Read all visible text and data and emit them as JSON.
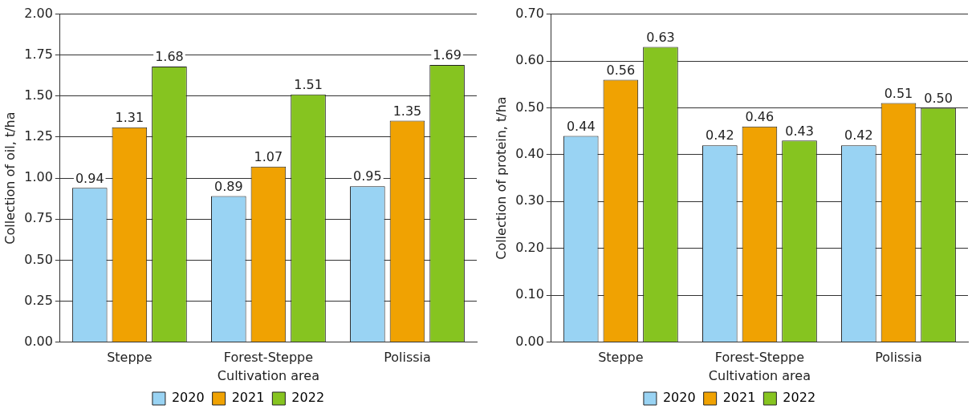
{
  "chart_data": [
    {
      "type": "bar",
      "xlabel": "Cultivation area",
      "ylabel": "Collection of oil, t/ha",
      "categories": [
        "Steppe",
        "Forest-Steppe",
        "Polissia"
      ],
      "series": [
        {
          "name": "2020",
          "color": "#99d3f3",
          "values": [
            0.94,
            0.89,
            0.95
          ],
          "value_labels": [
            "0.94",
            "0.89",
            "0.95"
          ]
        },
        {
          "name": "2021",
          "color": "#f0a202",
          "values": [
            1.31,
            1.07,
            1.35
          ],
          "value_labels": [
            "1.31",
            "1.07",
            "1.35"
          ]
        },
        {
          "name": "2022",
          "color": "#86c420",
          "values": [
            1.68,
            1.51,
            1.69
          ],
          "value_labels": [
            "1.68",
            "1.51",
            "1.69"
          ]
        }
      ],
      "ylim": [
        0,
        2
      ],
      "yticks": [
        {
          "value": 0,
          "label": "0.00"
        },
        {
          "value": 0.25,
          "label": "0.25"
        },
        {
          "value": 0.5,
          "label": "0.50"
        },
        {
          "value": 0.75,
          "label": "0.75"
        },
        {
          "value": 1,
          "label": "1.00"
        },
        {
          "value": 1.25,
          "label": "1.25"
        },
        {
          "value": 1.5,
          "label": "1.50"
        },
        {
          "value": 1.75,
          "label": "1.75"
        },
        {
          "value": 2,
          "label": "2.00"
        }
      ],
      "grid": "y",
      "legend": "bottom"
    },
    {
      "type": "bar",
      "xlabel": "Cultivation area",
      "ylabel": "Collection of protein, t/ha",
      "categories": [
        "Steppe",
        "Forest-Steppe",
        "Polissia"
      ],
      "series": [
        {
          "name": "2020",
          "color": "#99d3f3",
          "values": [
            0.44,
            0.42,
            0.42
          ],
          "value_labels": [
            "0.44",
            "0.42",
            "0.42"
          ]
        },
        {
          "name": "2021",
          "color": "#f0a202",
          "values": [
            0.56,
            0.46,
            0.51
          ],
          "value_labels": [
            "0.56",
            "0.46",
            "0.51"
          ]
        },
        {
          "name": "2022",
          "color": "#86c420",
          "values": [
            0.63,
            0.43,
            0.5
          ],
          "value_labels": [
            "0.63",
            "0.43",
            "0.50"
          ]
        }
      ],
      "ylim": [
        0,
        0.7
      ],
      "yticks": [
        {
          "value": 0,
          "label": "0.00"
        },
        {
          "value": 0.1,
          "label": "0.10"
        },
        {
          "value": 0.2,
          "label": "0.20"
        },
        {
          "value": 0.3,
          "label": "0.30"
        },
        {
          "value": 0.4,
          "label": "0.40"
        },
        {
          "value": 0.5,
          "label": "0.50"
        },
        {
          "value": 0.6,
          "label": "0.60"
        },
        {
          "value": 0.7,
          "label": "0.70"
        }
      ],
      "grid": "y",
      "legend": "bottom"
    }
  ]
}
